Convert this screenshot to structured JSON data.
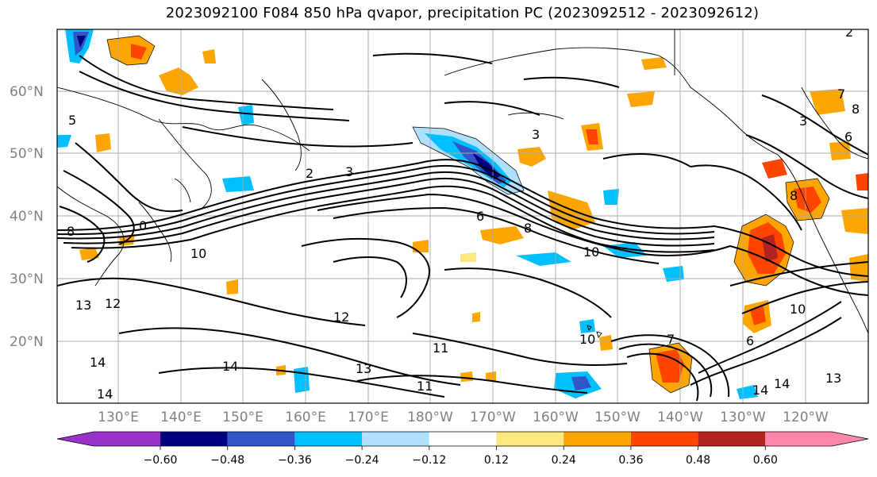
{
  "title": "2023092100 F084 850 hPa qvapor, precipitation PC (2023092512 - 2023092612)",
  "lat_labels": [
    "60°N",
    "50°N",
    "40°N",
    "30°N",
    "20°N"
  ],
  "lon_labels": [
    "130°E",
    "140°E",
    "150°E",
    "160°E",
    "170°E",
    "180°W",
    "170°W",
    "160°W",
    "150°W",
    "140°W",
    "130°W",
    "120°W"
  ],
  "colorbar": {
    "colors": [
      "#9933cc",
      "#000080",
      "#3355cc",
      "#00bfff",
      "#b0e0ff",
      "#ffffff",
      "#ffe680",
      "#ffa500",
      "#ff4500",
      "#b22222",
      "#ff88aa"
    ],
    "labels": [
      "−0.60",
      "−0.48",
      "−0.36",
      "−0.24",
      "−0.12",
      "0.12",
      "0.24",
      "0.36",
      "0.48",
      "0.60"
    ]
  },
  "contour_labels": [
    {
      "text": "5"
    },
    {
      "text": "2"
    },
    {
      "text": "3"
    },
    {
      "text": "0"
    },
    {
      "text": "8"
    },
    {
      "text": "10"
    },
    {
      "text": "13"
    },
    {
      "text": "12"
    },
    {
      "text": "14"
    },
    {
      "text": "12"
    },
    {
      "text": "11"
    },
    {
      "text": "11"
    },
    {
      "text": "13"
    },
    {
      "text": "14"
    },
    {
      "text": "14"
    },
    {
      "text": "10"
    },
    {
      "text": "6"
    },
    {
      "text": "8"
    },
    {
      "text": "10"
    },
    {
      "text": "7"
    },
    {
      "text": "3"
    },
    {
      "text": "10"
    },
    {
      "text": "6"
    },
    {
      "text": "13"
    },
    {
      "text": "14"
    },
    {
      "text": "14"
    },
    {
      "text": "8"
    },
    {
      "text": "8"
    },
    {
      "text": "7"
    },
    {
      "text": "6"
    },
    {
      "text": "2"
    },
    {
      "text": "3"
    }
  ]
}
